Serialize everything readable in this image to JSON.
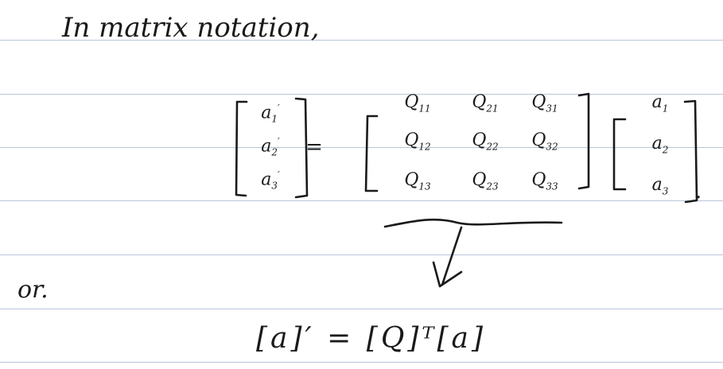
{
  "notes": {
    "heading": "In matrix notation,",
    "equation_1": {
      "lhs": [
        {
          "base": "a",
          "sub": "1",
          "prime": "′"
        },
        {
          "base": "a",
          "sub": "2",
          "prime": "′"
        },
        {
          "base": "a",
          "sub": "3",
          "prime": "′"
        }
      ],
      "equals": "=",
      "matrix_q": [
        [
          {
            "base": "Q",
            "sub": "11"
          },
          {
            "base": "Q",
            "sub": "21"
          },
          {
            "base": "Q",
            "sub": "31"
          }
        ],
        [
          {
            "base": "Q",
            "sub": "12"
          },
          {
            "base": "Q",
            "sub": "22"
          },
          {
            "base": "Q",
            "sub": "32"
          }
        ],
        [
          {
            "base": "Q",
            "sub": "13"
          },
          {
            "base": "Q",
            "sub": "23"
          },
          {
            "base": "Q",
            "sub": "33"
          }
        ]
      ],
      "vector_a": [
        {
          "base": "a",
          "sub": "1"
        },
        {
          "base": "a",
          "sub": "2"
        },
        {
          "base": "a",
          "sub": "3"
        }
      ],
      "end_punct": "."
    },
    "or_word": "or.",
    "equation_2": "[a]′ = [Q]ᵀ[a]"
  }
}
